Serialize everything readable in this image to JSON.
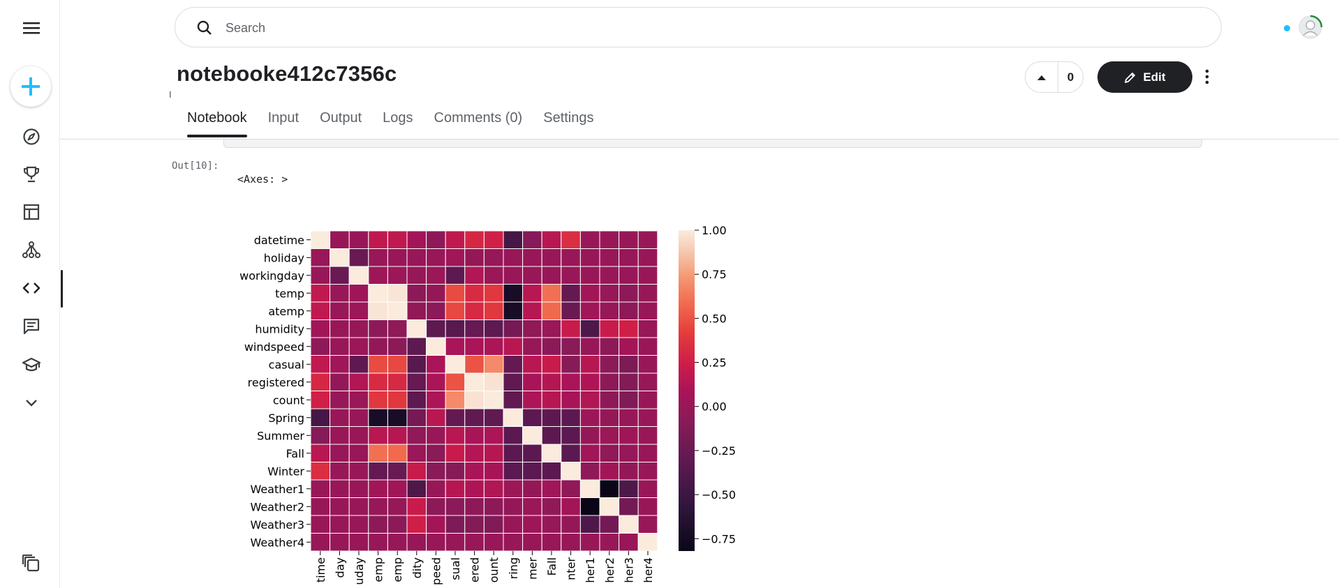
{
  "search": {
    "placeholder": "Search"
  },
  "notebook": {
    "title": "notebooke412c7356c",
    "votes": "0",
    "edit_label": "Edit"
  },
  "tabs": [
    "Notebook",
    "Input",
    "Output",
    "Logs",
    "Comments (0)",
    "Settings"
  ],
  "active_tab": "Notebook",
  "output": {
    "prompt": "Out[10]:",
    "text": "<Axes: >"
  },
  "colors": {
    "accent": "#20beff",
    "dark": "#202124"
  },
  "icons": {
    "sidebar": [
      "menu-icon",
      "plus-icon",
      "compass-icon",
      "trophy-icon",
      "table-icon",
      "models-icon",
      "code-icon",
      "comment-icon",
      "school-icon",
      "chevron-down-icon",
      "copy-icon"
    ]
  },
  "chart_data": {
    "type": "heatmap",
    "row_labels": [
      "datetime",
      "holiday",
      "workingday",
      "temp",
      "atemp",
      "humidity",
      "windspeed",
      "casual",
      "registered",
      "count",
      "Spring",
      "Summer",
      "Fall",
      "Winter",
      "Weather1",
      "Weather2",
      "Weather3",
      "Weather4"
    ],
    "col_labels": [
      "time",
      "day",
      "uday",
      "emp",
      "emp",
      "dity",
      "peed",
      "sual",
      "ered",
      "ount",
      "ring",
      "mer",
      "Fall",
      "nter",
      "her1",
      "her2",
      "her3",
      "her4"
    ],
    "colorbar": {
      "ticks": [
        "1.00",
        "0.75",
        "0.50",
        "0.25",
        "0.00",
        "−0.25",
        "−0.50",
        "−0.75"
      ],
      "tick_values": [
        1.0,
        0.75,
        0.5,
        0.25,
        0.0,
        -0.25,
        -0.5,
        -0.75
      ],
      "min": -0.82,
      "max": 1.0
    },
    "values": [
      [
        1.0,
        0.0,
        0.0,
        0.18,
        0.18,
        0.05,
        -0.05,
        0.18,
        0.3,
        0.26,
        -0.45,
        -0.1,
        0.15,
        0.34,
        0.0,
        0.0,
        0.0,
        0.0
      ],
      [
        0.0,
        1.0,
        -0.25,
        0.0,
        0.0,
        0.0,
        0.0,
        0.04,
        -0.02,
        -0.01,
        0.0,
        0.0,
        0.0,
        0.0,
        0.0,
        0.0,
        0.0,
        0.0
      ],
      [
        0.0,
        -0.25,
        1.0,
        0.03,
        0.02,
        -0.01,
        0.01,
        -0.32,
        0.12,
        0.01,
        0.0,
        0.0,
        0.0,
        0.0,
        0.0,
        0.0,
        0.0,
        0.0
      ],
      [
        0.18,
        0.0,
        0.03,
        1.0,
        0.98,
        -0.06,
        -0.02,
        0.47,
        0.32,
        0.39,
        -0.72,
        0.15,
        0.6,
        -0.28,
        0.05,
        -0.01,
        -0.06,
        0.0
      ],
      [
        0.18,
        0.0,
        0.02,
        0.98,
        1.0,
        -0.04,
        -0.06,
        0.46,
        0.31,
        0.39,
        -0.72,
        0.14,
        0.58,
        -0.25,
        0.04,
        -0.01,
        -0.06,
        0.0
      ],
      [
        0.05,
        0.0,
        -0.01,
        -0.06,
        -0.04,
        1.0,
        -0.32,
        -0.35,
        -0.27,
        -0.32,
        -0.19,
        -0.04,
        0.01,
        0.21,
        -0.4,
        0.22,
        0.25,
        0.0
      ],
      [
        -0.05,
        0.0,
        0.01,
        -0.02,
        -0.06,
        -0.32,
        1.0,
        0.09,
        0.09,
        0.1,
        0.15,
        0.0,
        -0.07,
        -0.08,
        0.0,
        -0.05,
        0.06,
        0.0
      ],
      [
        0.18,
        0.04,
        -0.32,
        0.47,
        0.46,
        -0.35,
        0.09,
        1.0,
        0.5,
        0.69,
        -0.28,
        0.15,
        0.22,
        -0.09,
        0.14,
        -0.06,
        -0.15,
        0.0
      ],
      [
        0.3,
        -0.02,
        0.12,
        0.32,
        0.31,
        -0.27,
        0.09,
        0.5,
        1.0,
        0.97,
        -0.3,
        0.08,
        0.13,
        0.09,
        0.11,
        -0.05,
        -0.11,
        0.0
      ],
      [
        0.26,
        -0.01,
        0.01,
        0.39,
        0.39,
        -0.32,
        0.1,
        0.69,
        0.97,
        1.0,
        -0.3,
        0.1,
        0.14,
        0.08,
        0.12,
        -0.05,
        -0.12,
        0.0
      ],
      [
        -0.45,
        0.0,
        0.0,
        -0.72,
        -0.72,
        -0.19,
        0.15,
        -0.28,
        -0.3,
        -0.3,
        1.0,
        -0.33,
        -0.33,
        -0.33,
        0.02,
        -0.02,
        0.0,
        0.0
      ],
      [
        -0.1,
        0.0,
        0.0,
        0.15,
        0.14,
        -0.04,
        0.0,
        0.15,
        0.08,
        0.1,
        -0.33,
        1.0,
        -0.33,
        -0.33,
        -0.02,
        0.01,
        0.03,
        0.0
      ],
      [
        0.15,
        0.0,
        0.0,
        0.6,
        0.58,
        0.01,
        -0.07,
        0.22,
        0.13,
        0.14,
        -0.33,
        -0.33,
        1.0,
        -0.33,
        0.04,
        -0.04,
        -0.01,
        0.0
      ],
      [
        0.34,
        0.0,
        0.0,
        -0.28,
        -0.25,
        0.21,
        -0.08,
        -0.09,
        0.09,
        0.08,
        -0.33,
        -0.33,
        -0.33,
        1.0,
        -0.04,
        0.05,
        -0.02,
        0.0
      ],
      [
        0.0,
        0.0,
        0.0,
        0.05,
        0.04,
        -0.4,
        0.0,
        0.14,
        0.11,
        0.12,
        0.02,
        -0.02,
        0.04,
        -0.04,
        1.0,
        -0.82,
        -0.4,
        0.0
      ],
      [
        0.0,
        0.0,
        0.0,
        -0.01,
        -0.01,
        0.22,
        -0.05,
        -0.06,
        -0.05,
        -0.05,
        -0.02,
        0.01,
        -0.04,
        0.05,
        -0.82,
        1.0,
        -0.2,
        0.0
      ],
      [
        0.0,
        0.0,
        0.0,
        -0.06,
        -0.06,
        0.25,
        0.06,
        -0.15,
        -0.11,
        -0.12,
        0.0,
        0.03,
        -0.01,
        -0.02,
        -0.4,
        -0.2,
        1.0,
        0.0
      ],
      [
        0.0,
        0.0,
        0.0,
        0.0,
        0.0,
        0.0,
        0.0,
        0.0,
        0.0,
        0.0,
        0.0,
        0.0,
        0.0,
        0.0,
        0.0,
        0.0,
        0.0,
        1.0
      ]
    ]
  }
}
